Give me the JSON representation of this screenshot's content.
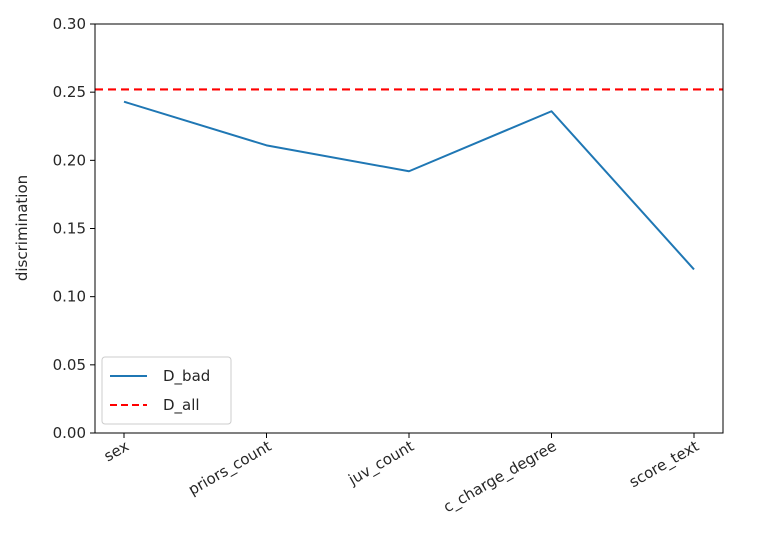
{
  "chart_data": {
    "type": "line",
    "title": "",
    "xlabel": "",
    "ylabel": "discrimination",
    "categories": [
      "sex",
      "priors_count",
      "juv_count",
      "c_charge_degree",
      "score_text"
    ],
    "ylim": [
      0.0,
      0.3
    ],
    "yticks": [
      "0.00",
      "0.05",
      "0.10",
      "0.15",
      "0.20",
      "0.25",
      "0.30"
    ],
    "series": [
      {
        "name": "D_bad",
        "values": [
          0.243,
          0.211,
          0.192,
          0.236,
          0.12
        ],
        "color": "#1f77b4",
        "style": "solid"
      }
    ],
    "reference_lines": [
      {
        "name": "D_all",
        "value": 0.252,
        "color": "#ff0000",
        "style": "dashed"
      }
    ],
    "grid": false,
    "legend_position": "lower-left"
  }
}
